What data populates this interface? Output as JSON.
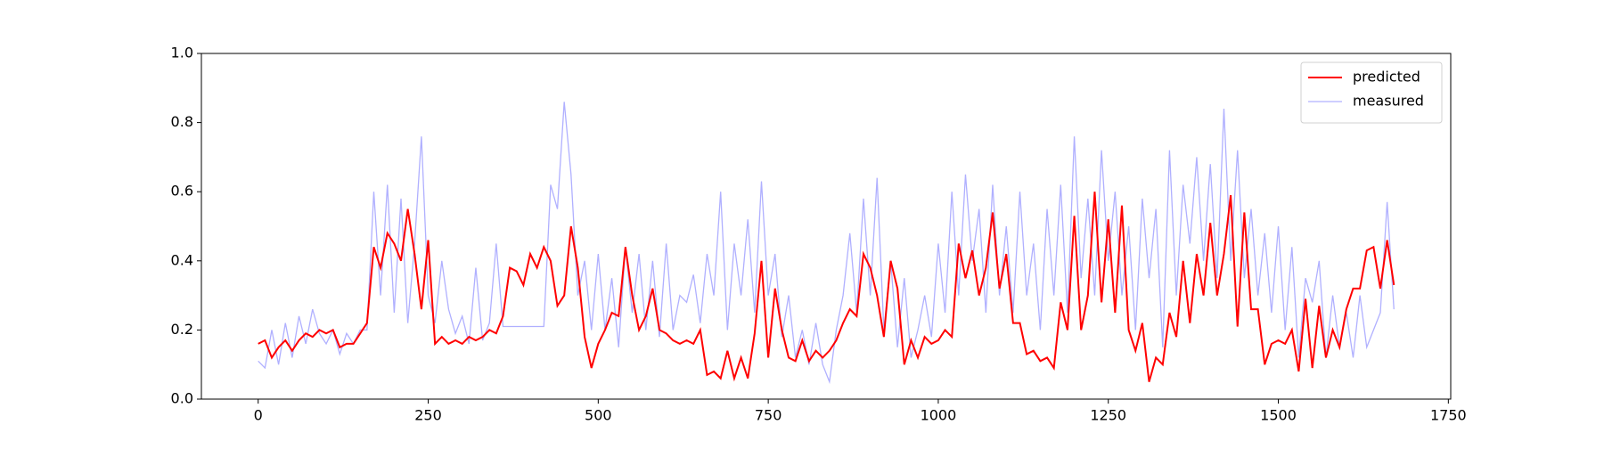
{
  "chart_data": {
    "type": "line",
    "x": [
      0,
      10,
      20,
      30,
      40,
      50,
      60,
      70,
      80,
      90,
      100,
      110,
      120,
      130,
      140,
      150,
      160,
      170,
      180,
      190,
      200,
      210,
      220,
      230,
      240,
      250,
      260,
      270,
      280,
      290,
      300,
      310,
      320,
      330,
      340,
      350,
      360,
      370,
      380,
      390,
      400,
      410,
      420,
      430,
      440,
      450,
      460,
      470,
      480,
      490,
      500,
      510,
      520,
      530,
      540,
      550,
      560,
      570,
      580,
      590,
      600,
      610,
      620,
      630,
      640,
      650,
      660,
      670,
      680,
      690,
      700,
      710,
      720,
      730,
      740,
      750,
      760,
      770,
      780,
      790,
      800,
      810,
      820,
      830,
      840,
      850,
      860,
      870,
      880,
      890,
      900,
      910,
      920,
      930,
      940,
      950,
      960,
      970,
      980,
      990,
      1000,
      1010,
      1020,
      1030,
      1040,
      1050,
      1060,
      1070,
      1080,
      1090,
      1100,
      1110,
      1120,
      1130,
      1140,
      1150,
      1160,
      1170,
      1180,
      1190,
      1200,
      1210,
      1220,
      1230,
      1240,
      1250,
      1260,
      1270,
      1280,
      1290,
      1300,
      1310,
      1320,
      1330,
      1340,
      1350,
      1360,
      1370,
      1380,
      1390,
      1400,
      1410,
      1420,
      1430,
      1440,
      1450,
      1460,
      1470,
      1480,
      1490,
      1500,
      1510,
      1520,
      1530,
      1540,
      1550,
      1560,
      1570,
      1580,
      1590,
      1600,
      1610,
      1620,
      1630,
      1640,
      1650,
      1660,
      1670
    ],
    "series": [
      {
        "name": "predicted",
        "color": "#ff0000",
        "values": [
          0.16,
          0.17,
          0.12,
          0.15,
          0.17,
          0.14,
          0.17,
          0.19,
          0.18,
          0.2,
          0.19,
          0.2,
          0.15,
          0.16,
          0.16,
          0.19,
          0.22,
          0.44,
          0.38,
          0.48,
          0.45,
          0.4,
          0.55,
          0.42,
          0.26,
          0.46,
          0.16,
          0.18,
          0.16,
          0.17,
          0.16,
          0.18,
          0.17,
          0.18,
          0.2,
          0.19,
          0.24,
          0.38,
          0.37,
          0.33,
          0.42,
          0.38,
          0.44,
          0.4,
          0.27,
          0.3,
          0.5,
          0.38,
          0.18,
          0.09,
          0.16,
          0.2,
          0.25,
          0.24,
          0.44,
          0.3,
          0.2,
          0.24,
          0.32,
          0.2,
          0.19,
          0.17,
          0.16,
          0.17,
          0.16,
          0.2,
          0.07,
          0.08,
          0.06,
          0.14,
          0.06,
          0.12,
          0.06,
          0.19,
          0.4,
          0.12,
          0.32,
          0.2,
          0.12,
          0.11,
          0.17,
          0.11,
          0.14,
          0.12,
          0.14,
          0.17,
          0.22,
          0.26,
          0.24,
          0.42,
          0.38,
          0.3,
          0.18,
          0.4,
          0.32,
          0.1,
          0.17,
          0.12,
          0.18,
          0.16,
          0.17,
          0.2,
          0.18,
          0.45,
          0.35,
          0.43,
          0.3,
          0.38,
          0.54,
          0.32,
          0.42,
          0.22,
          0.22,
          0.13,
          0.14,
          0.11,
          0.12,
          0.09,
          0.28,
          0.2,
          0.53,
          0.2,
          0.3,
          0.6,
          0.28,
          0.52,
          0.25,
          0.56,
          0.2,
          0.14,
          0.22,
          0.05,
          0.12,
          0.1,
          0.25,
          0.18,
          0.4,
          0.22,
          0.42,
          0.3,
          0.51,
          0.3,
          0.42,
          0.59,
          0.21,
          0.54,
          0.26,
          0.26,
          0.1,
          0.16,
          0.17,
          0.16,
          0.2,
          0.08,
          0.29,
          0.09,
          0.27,
          0.12,
          0.2,
          0.15,
          0.26,
          0.32,
          0.32,
          0.43,
          0.44,
          0.32,
          0.46,
          0.33
        ]
      },
      {
        "name": "measured",
        "color": "#b0b0ff",
        "values": [
          0.11,
          0.09,
          0.2,
          0.1,
          0.22,
          0.12,
          0.24,
          0.16,
          0.26,
          0.19,
          0.16,
          0.2,
          0.13,
          0.19,
          0.16,
          0.2,
          0.2,
          0.6,
          0.3,
          0.62,
          0.25,
          0.58,
          0.22,
          0.45,
          0.76,
          0.3,
          0.22,
          0.4,
          0.26,
          0.19,
          0.24,
          0.16,
          0.38,
          0.17,
          0.22,
          0.45,
          0.21,
          0.21,
          0.21,
          0.21,
          0.21,
          0.21,
          0.21,
          0.62,
          0.55,
          0.86,
          0.65,
          0.3,
          0.4,
          0.2,
          0.42,
          0.2,
          0.35,
          0.15,
          0.44,
          0.25,
          0.42,
          0.2,
          0.4,
          0.18,
          0.45,
          0.2,
          0.3,
          0.28,
          0.36,
          0.22,
          0.42,
          0.3,
          0.6,
          0.2,
          0.45,
          0.3,
          0.52,
          0.25,
          0.63,
          0.3,
          0.42,
          0.18,
          0.3,
          0.12,
          0.2,
          0.1,
          0.22,
          0.1,
          0.05,
          0.2,
          0.3,
          0.48,
          0.25,
          0.58,
          0.3,
          0.64,
          0.2,
          0.4,
          0.15,
          0.35,
          0.12,
          0.2,
          0.3,
          0.18,
          0.45,
          0.25,
          0.6,
          0.3,
          0.65,
          0.4,
          0.55,
          0.25,
          0.62,
          0.3,
          0.5,
          0.25,
          0.6,
          0.3,
          0.45,
          0.2,
          0.55,
          0.3,
          0.62,
          0.25,
          0.76,
          0.35,
          0.58,
          0.3,
          0.72,
          0.4,
          0.6,
          0.3,
          0.5,
          0.2,
          0.58,
          0.35,
          0.55,
          0.15,
          0.72,
          0.3,
          0.62,
          0.45,
          0.7,
          0.4,
          0.68,
          0.35,
          0.84,
          0.4,
          0.72,
          0.35,
          0.55,
          0.3,
          0.48,
          0.25,
          0.5,
          0.2,
          0.44,
          0.12,
          0.35,
          0.28,
          0.4,
          0.12,
          0.3,
          0.15,
          0.25,
          0.12,
          0.3,
          0.15,
          0.2,
          0.25,
          0.57,
          0.26
        ]
      }
    ],
    "xlim": [
      -83.5,
      1753.5
    ],
    "xticks": [
      0,
      250,
      500,
      750,
      1000,
      1250,
      1500,
      1750
    ],
    "ylim": [
      0,
      1
    ],
    "yticks": [
      {
        "value": 0,
        "label": "0.0"
      },
      0.2,
      0.4,
      0.6,
      0.8,
      {
        "value": 1,
        "label": "1.0"
      }
    ],
    "legend": "upper right"
  }
}
